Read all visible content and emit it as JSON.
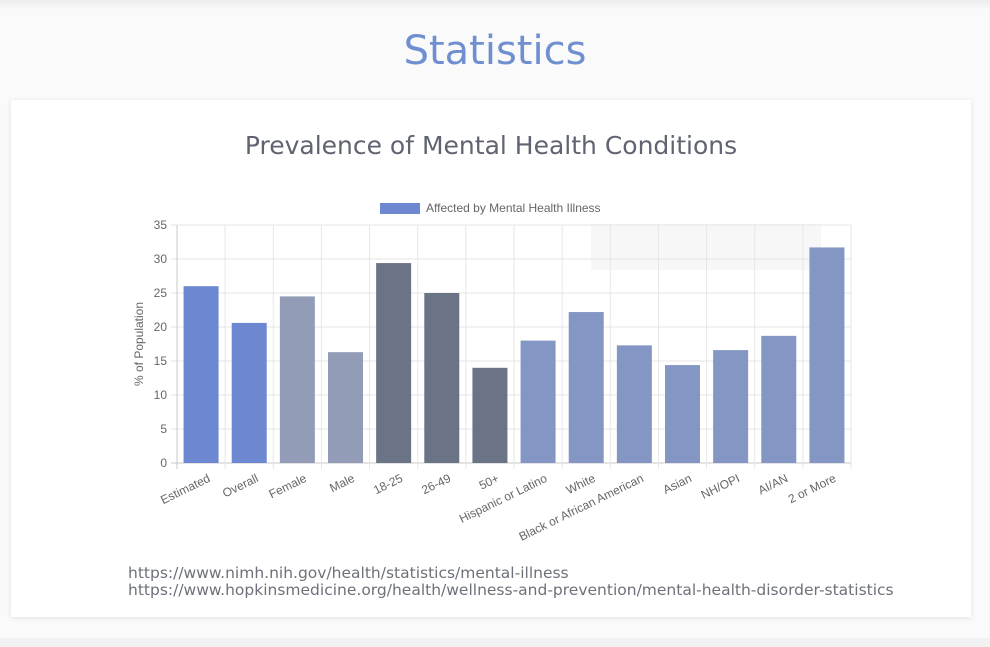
{
  "page": {
    "title": "Statistics"
  },
  "card": {
    "title": "Prevalence of Mental Health Conditions",
    "sources": [
      "https://www.nimh.nih.gov/health/statistics/mental-illness",
      "https://www.hopkinsmedicine.org/health/wellness-and-prevention/mental-health-disorder-statistics"
    ]
  },
  "chart_data": {
    "type": "bar",
    "legend_label": "Affected by Mental Health Illness",
    "legend_position": "top",
    "ylabel": "% of Population",
    "xlabel": "",
    "ylim": [
      0,
      35
    ],
    "yticks": [
      0,
      5,
      10,
      15,
      20,
      25,
      30,
      35
    ],
    "grid": true,
    "categories": [
      "Estimated",
      "Overall",
      "Female",
      "Male",
      "18-25",
      "26-49",
      "50+",
      "Hispanic or Latino",
      "White",
      "Black or African American",
      "Asian",
      "NH/OPI",
      "AI/AN",
      "2 or More"
    ],
    "values": [
      26.0,
      20.6,
      24.5,
      16.3,
      29.4,
      25.0,
      14.0,
      18.0,
      22.2,
      17.3,
      14.4,
      16.6,
      18.7,
      31.7
    ],
    "bar_colors": [
      "#6d87d1",
      "#6d87d1",
      "#939cb7",
      "#939cb7",
      "#6b7387",
      "#6b7387",
      "#6b7387",
      "#8496c4",
      "#8496c4",
      "#8496c4",
      "#8496c4",
      "#8496c4",
      "#8496c4",
      "#8496c4"
    ],
    "legend_color": "#6d87d1"
  }
}
